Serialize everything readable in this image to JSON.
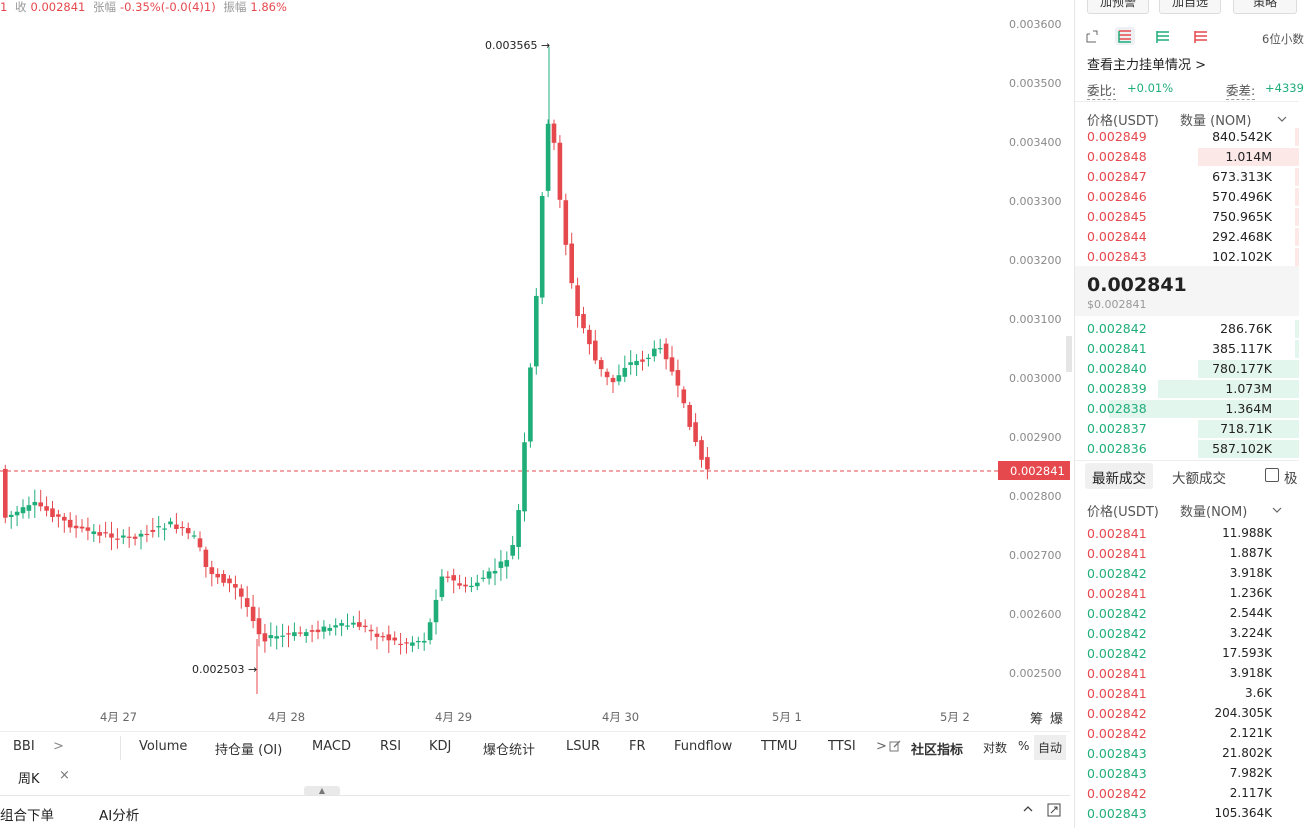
{
  "top_info": {
    "prefix": "1",
    "close_label": "收",
    "close_value": "0.002841",
    "change_label": "张幅",
    "change_value": "-0.35%(-0.0(4)1)",
    "amplitude_label": "振幅",
    "amplitude_value": "1.86%"
  },
  "chart": {
    "y_axis_labels": [
      "0.003600",
      "0.003500",
      "0.003400",
      "0.003300",
      "0.003200",
      "0.003100",
      "0.003000",
      "0.002900",
      "0.002800",
      "0.002700",
      "0.002600",
      "0.002500"
    ],
    "x_axis_labels": [
      "4月 27",
      "4月 28",
      "4月 29",
      "4月 30",
      "5月 1",
      "5月 2"
    ],
    "high_annotation": "0.003565 →",
    "low_annotation": "0.002503 →",
    "current_price_tag": "0.002841",
    "axis_right_labels": [
      "筹",
      "爆"
    ],
    "colors": {
      "up": "#1fae7a",
      "down": "#e5484d"
    }
  },
  "indicators": {
    "items": [
      "BBI",
      "Volume",
      "持仓量 (OI)",
      "MACD",
      "RSI",
      "KDJ",
      "爆仓统计",
      "LSUR",
      "FR",
      "Fundflow",
      "TTMU",
      "TTSI"
    ],
    "more_arrow": ">",
    "first_arrow": ">",
    "community": "社区指标",
    "log_scale": "对数",
    "percent": "%",
    "auto": "自动"
  },
  "period": {
    "selected": "周K",
    "close": "×"
  },
  "bottom": {
    "combo_order": "组合下单",
    "ai_analysis": "AI分析"
  },
  "orderbook": {
    "top_buttons": [
      "加预警",
      "加自选",
      "策略"
    ],
    "decimal_label": "6位小数",
    "main_orders_link": "查看主力挂单情况 >",
    "ratio_label": "委比:",
    "ratio_value": "+0.01%",
    "diff_label": "委差:",
    "diff_value": "+4339",
    "price_header": "价格(USDT)",
    "qty_header": "数量 (NOM)",
    "asks": [
      {
        "price": "0.002849",
        "qty": "840.542K",
        "depth": 0.02
      },
      {
        "price": "0.002848",
        "qty": "1.014M",
        "depth": 0.45
      },
      {
        "price": "0.002847",
        "qty": "673.313K",
        "depth": 0.02
      },
      {
        "price": "0.002846",
        "qty": "570.496K",
        "depth": 0.02
      },
      {
        "price": "0.002845",
        "qty": "750.965K",
        "depth": 0.02
      },
      {
        "price": "0.002844",
        "qty": "292.468K",
        "depth": 0.02
      },
      {
        "price": "0.002843",
        "qty": "102.102K",
        "depth": 0.02
      }
    ],
    "last_price": "0.002841",
    "last_price_usd": "$0.002841",
    "bids": [
      {
        "price": "0.002842",
        "qty": "286.76K",
        "depth": 0.02
      },
      {
        "price": "0.002841",
        "qty": "385.117K",
        "depth": 0.02
      },
      {
        "price": "0.002840",
        "qty": "780.177K",
        "depth": 0.45
      },
      {
        "price": "0.002839",
        "qty": "1.073M",
        "depth": 0.63
      },
      {
        "price": "0.002838",
        "qty": "1.364M",
        "depth": 0.85
      },
      {
        "price": "0.002837",
        "qty": "718.71K",
        "depth": 0.45
      },
      {
        "price": "0.002836",
        "qty": "587.102K",
        "depth": 0.45
      }
    ]
  },
  "trades": {
    "tab_latest": "最新成交",
    "tab_large": "大额成交",
    "checkbox_label": "极",
    "price_header": "价格(USDT)",
    "qty_header": "数量(NOM)",
    "rows": [
      {
        "price": "0.002841",
        "qty": "11.988K",
        "side": "sell"
      },
      {
        "price": "0.002841",
        "qty": "1.887K",
        "side": "sell"
      },
      {
        "price": "0.002842",
        "qty": "3.918K",
        "side": "buy"
      },
      {
        "price": "0.002841",
        "qty": "1.236K",
        "side": "sell"
      },
      {
        "price": "0.002842",
        "qty": "2.544K",
        "side": "buy"
      },
      {
        "price": "0.002842",
        "qty": "3.224K",
        "side": "buy"
      },
      {
        "price": "0.002842",
        "qty": "17.593K",
        "side": "buy"
      },
      {
        "price": "0.002841",
        "qty": "3.918K",
        "side": "sell"
      },
      {
        "price": "0.002841",
        "qty": "3.6K",
        "side": "sell"
      },
      {
        "price": "0.002842",
        "qty": "204.305K",
        "side": "sell"
      },
      {
        "price": "0.002842",
        "qty": "2.121K",
        "side": "sell"
      },
      {
        "price": "0.002843",
        "qty": "21.802K",
        "side": "buy"
      },
      {
        "price": "0.002843",
        "qty": "7.982K",
        "side": "buy"
      },
      {
        "price": "0.002842",
        "qty": "2.117K",
        "side": "sell"
      },
      {
        "price": "0.002843",
        "qty": "105.364K",
        "side": "buy"
      }
    ]
  }
}
